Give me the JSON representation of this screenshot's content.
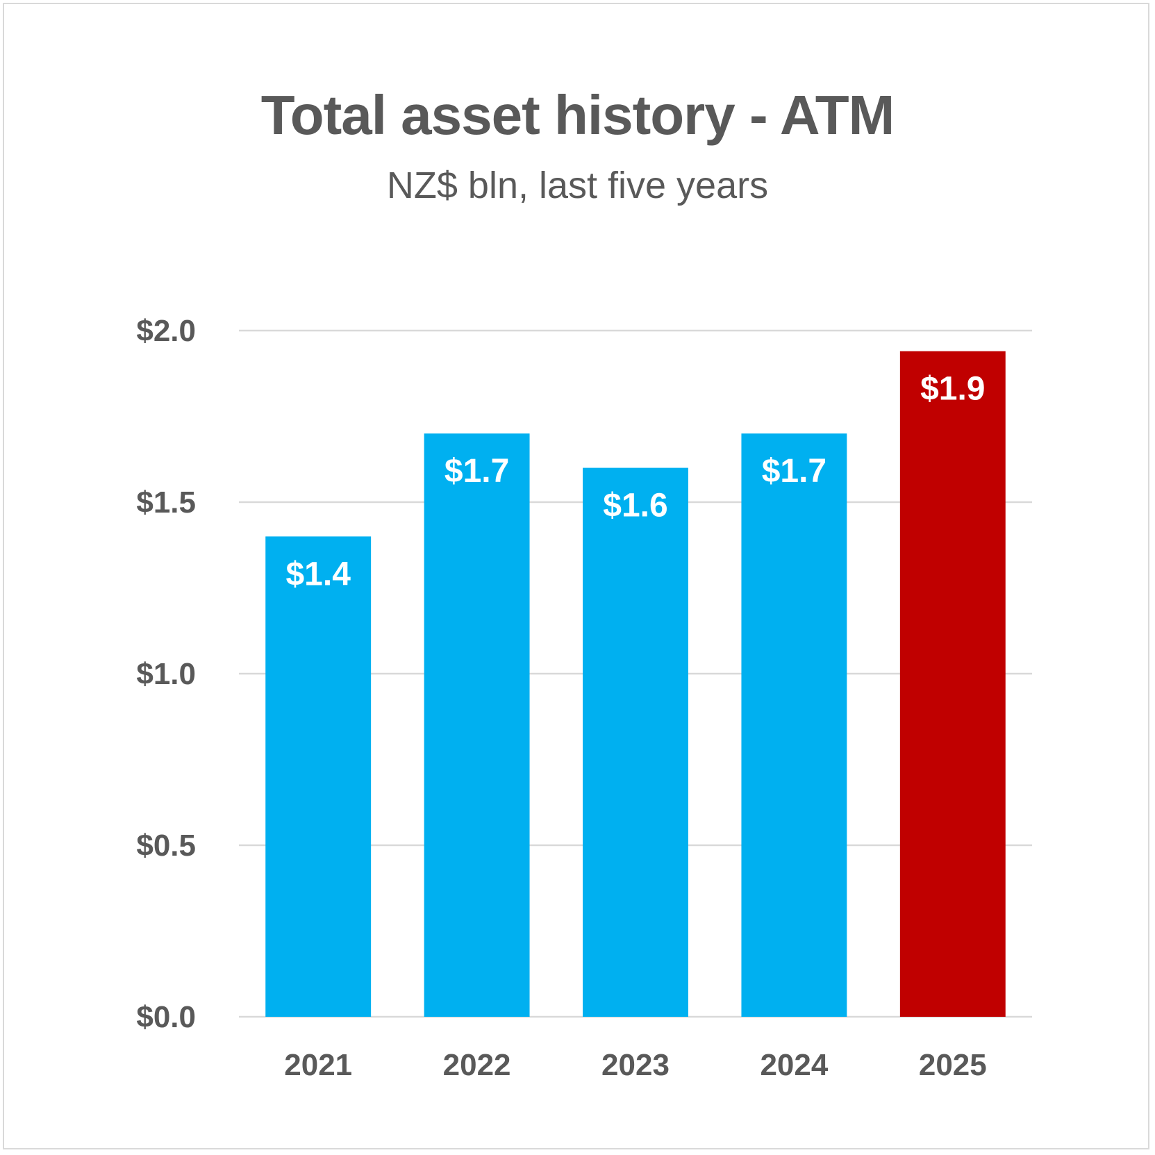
{
  "chart_data": {
    "type": "bar",
    "title": "Total asset history - ATM",
    "subtitle": "NZ$ bln, last five years",
    "categories": [
      "2021",
      "2022",
      "2023",
      "2024",
      "2025"
    ],
    "values": [
      1.4,
      1.7,
      1.6,
      1.7,
      1.94
    ],
    "data_labels": [
      "$1.4",
      "$1.7",
      "$1.6",
      "$1.7",
      "$1.9"
    ],
    "yticks": [
      0.0,
      0.5,
      1.0,
      1.5,
      2.0
    ],
    "ytick_labels": [
      "$0.0",
      "$0.5",
      "$1.0",
      "$1.5",
      "$2.0"
    ],
    "ylim": [
      0,
      2.0
    ],
    "grid": true,
    "legend": "none",
    "colors": {
      "default_bar": "#00b0f0",
      "highlight_bar": "#c00000",
      "gridline": "#d9d9d9",
      "text": "#595959"
    },
    "highlight_index": 4
  }
}
